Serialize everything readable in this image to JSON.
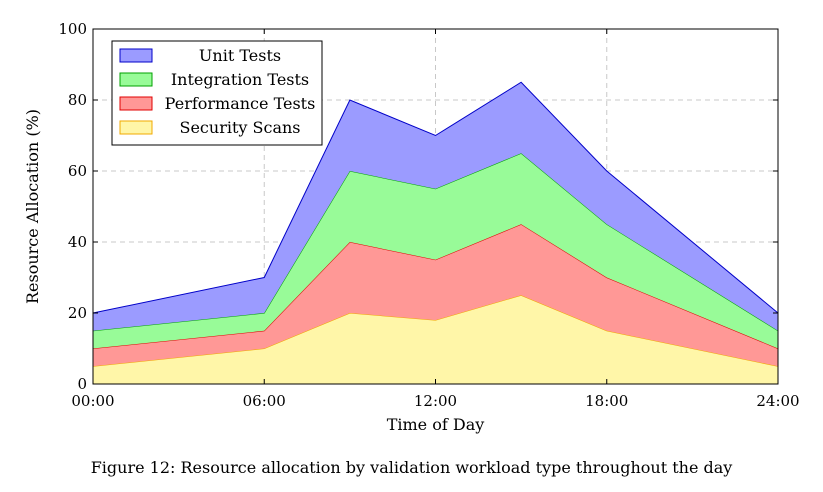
{
  "caption": "Figure 12: Resource allocation by validation workload type throughout the day",
  "chart_data": {
    "type": "area",
    "stacked": true,
    "title": "",
    "xlabel": "Time of Day",
    "ylabel": "Resource Allocation (%)",
    "x": [
      0,
      6,
      9,
      12,
      15,
      18,
      24
    ],
    "x_ticks": [
      0,
      6,
      12,
      18,
      24
    ],
    "x_tick_labels": [
      "00:00",
      "06:00",
      "12:00",
      "18:00",
      "24:00"
    ],
    "xlim": [
      0,
      24
    ],
    "y_ticks": [
      0,
      20,
      40,
      60,
      80,
      100
    ],
    "y_tick_labels": [
      "0",
      "20",
      "40",
      "60",
      "80",
      "100"
    ],
    "ylim": [
      0,
      100
    ],
    "grid": true,
    "legend_position": "top-left",
    "series": [
      {
        "name": "Security Scans",
        "values": [
          5,
          10,
          20,
          18,
          25,
          15,
          5
        ],
        "fill": "#fff6a8",
        "stroke": "#f2a900"
      },
      {
        "name": "Performance Tests",
        "values": [
          5,
          5,
          20,
          17,
          20,
          15,
          5
        ],
        "fill": "#ff9896",
        "stroke": "#e00000"
      },
      {
        "name": "Integration Tests",
        "values": [
          5,
          5,
          20,
          20,
          20,
          15,
          5
        ],
        "fill": "#98fb98",
        "stroke": "#00a000"
      },
      {
        "name": "Unit Tests",
        "values": [
          5,
          10,
          20,
          15,
          20,
          15,
          5
        ],
        "fill": "#9b9bff",
        "stroke": "#0000c8"
      }
    ],
    "legend_order": [
      "Unit Tests",
      "Integration Tests",
      "Performance Tests",
      "Security Scans"
    ]
  }
}
